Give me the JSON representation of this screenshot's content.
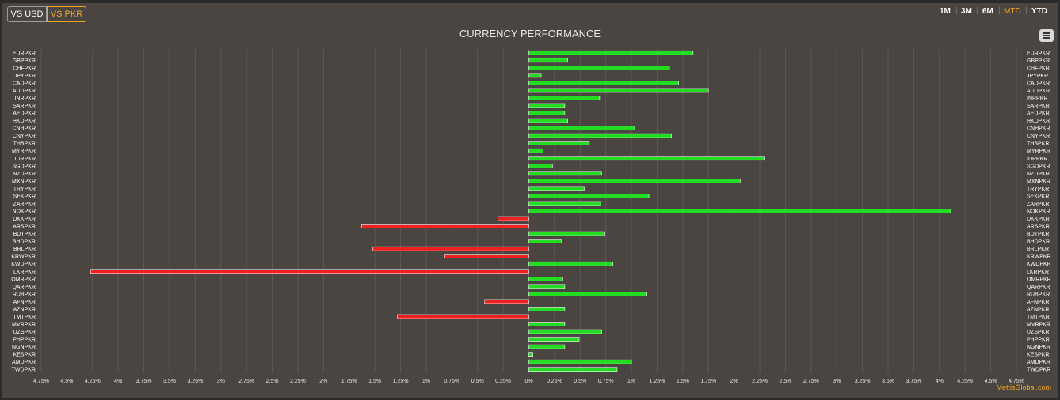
{
  "toolbar": {
    "vs_usd_label": "VS USD",
    "vs_pkr_label": "VS PKR",
    "ranges": [
      "1M",
      "3M",
      "6M",
      "MTD",
      "YTD"
    ],
    "active_range": "MTD"
  },
  "credit": "MettisGlobal.com",
  "colors": {
    "positive": "#22dd22",
    "negative": "#ee2020",
    "accent": "#f5a623"
  },
  "chart_data": {
    "type": "bar",
    "orientation": "horizontal",
    "title": "CURRENCY PERFORMANCE",
    "categories": [
      "EURPKR",
      "GBPPKR",
      "CHFPKR",
      "JPYPKR",
      "CADPKR",
      "AUDPKR",
      "INRPKR",
      "SARPKR",
      "AEDPKR",
      "HKDPKR",
      "CNHPKR",
      "CNYPKR",
      "THBPKR",
      "MYRPKR",
      "IDRPKR",
      "SGDPKR",
      "NZDPKR",
      "MXNPKR",
      "TRYPKR",
      "SEKPKR",
      "ZARPKR",
      "NOKPKR",
      "DKKPKR",
      "ARSPKR",
      "BDTPKR",
      "BHDPKR",
      "BRLPKR",
      "KRWPKR",
      "KWDPKR",
      "LKRPKR",
      "OMRPKR",
      "QARPKR",
      "RUBPKR",
      "AFNPKR",
      "AZNPKR",
      "TMTPKR",
      "MVRPKR",
      "UZSPKR",
      "PHPPKR",
      "NGNPKR",
      "KESPKR",
      "AMDPKR",
      "TWDPKR"
    ],
    "values": [
      1.6,
      0.38,
      1.37,
      0.12,
      1.46,
      1.75,
      0.69,
      0.35,
      0.35,
      0.38,
      1.03,
      1.39,
      0.59,
      0.14,
      2.3,
      0.23,
      0.71,
      2.06,
      0.54,
      1.17,
      0.7,
      4.11,
      -0.3,
      -1.63,
      0.74,
      0.32,
      -1.52,
      -0.82,
      0.82,
      -4.27,
      0.33,
      0.35,
      1.15,
      -0.43,
      0.35,
      -1.28,
      0.35,
      0.71,
      0.49,
      0.35,
      0.04,
      1.0,
      0.86
    ],
    "xticks": [
      "4.75%",
      "4.5%",
      "4.25%",
      "4%",
      "3.75%",
      "3.5%",
      "3.25%",
      "3%",
      "2.75%",
      "2.5%",
      "2.25%",
      "2%",
      "1.75%",
      "1.5%",
      "1.25%",
      "1%",
      "0.75%",
      "0.5%",
      "0.25%",
      "0%",
      "0.25%",
      "0.5%",
      "0.75%",
      "1%",
      "1.25%",
      "1.5%",
      "1.75%",
      "2%",
      "2.25%",
      "2.5%",
      "2.75%",
      "3%",
      "3.25%",
      "3.5%",
      "3.75%",
      "4%",
      "4.25%",
      "4.5%",
      "4.75%"
    ],
    "xlim": [
      -4.75,
      4.75
    ],
    "grid": true,
    "legend": "none"
  }
}
